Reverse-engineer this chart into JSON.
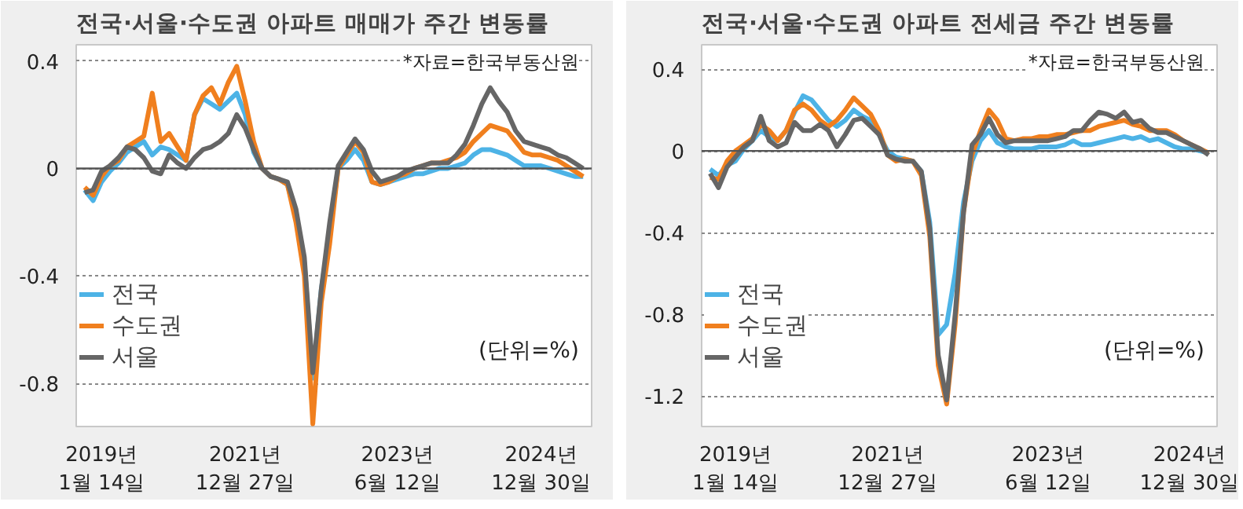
{
  "chart_data": [
    {
      "type": "line",
      "title": "전국·서울·수도권 아파트 매매가 주간 변동률",
      "annotations": [
        "*자료=한국부동산원",
        "(단위=%)"
      ],
      "categories": [
        null,
        null,
        "2019년\n1월 14일",
        null,
        null,
        null,
        null,
        null,
        null,
        null,
        null,
        null,
        null,
        null,
        null,
        null,
        null,
        null,
        null,
        "2021년\n12월 27일",
        null,
        null,
        null,
        null,
        null,
        null,
        null,
        null,
        null,
        null,
        null,
        null,
        null,
        null,
        null,
        null,
        null,
        "2023년\n6월 12일",
        null,
        null,
        null,
        null,
        null,
        null,
        null,
        null,
        null,
        null,
        null,
        null,
        null,
        null,
        null,
        null,
        "2024년\n12월 30일",
        null,
        null,
        null,
        null,
        null
      ],
      "series": [
        {
          "name": "전국",
          "color": "#4db3e6",
          "values": [
            -0.08,
            -0.12,
            -0.05,
            -0.01,
            0.02,
            0.06,
            0.08,
            0.1,
            0.05,
            0.08,
            0.07,
            0.05,
            0.03,
            0.2,
            0.26,
            0.24,
            0.22,
            0.25,
            0.28,
            0.2,
            0.06,
            0.0,
            -0.03,
            -0.04,
            -0.06,
            -0.18,
            -0.35,
            -0.78,
            -0.45,
            -0.24,
            0.0,
            0.03,
            0.07,
            0.03,
            -0.05,
            -0.06,
            -0.05,
            -0.04,
            -0.03,
            -0.02,
            -0.02,
            -0.01,
            0.0,
            0.0,
            0.01,
            0.02,
            0.05,
            0.07,
            0.07,
            0.06,
            0.05,
            0.03,
            0.01,
            0.01,
            0.01,
            0.0,
            -0.01,
            -0.02,
            -0.03,
            -0.03
          ]
        },
        {
          "name": "수도권",
          "color": "#f07f1e",
          "values": [
            -0.07,
            -0.1,
            -0.03,
            0.01,
            0.03,
            0.08,
            0.1,
            0.12,
            0.28,
            0.1,
            0.13,
            0.08,
            0.03,
            0.2,
            0.27,
            0.3,
            0.24,
            0.32,
            0.38,
            0.25,
            0.1,
            0.0,
            -0.03,
            -0.04,
            -0.06,
            -0.2,
            -0.4,
            -0.95,
            -0.5,
            -0.28,
            0.0,
            0.05,
            0.1,
            0.06,
            -0.05,
            -0.06,
            -0.05,
            -0.03,
            -0.02,
            0.0,
            0.01,
            0.02,
            0.02,
            0.03,
            0.04,
            0.06,
            0.1,
            0.13,
            0.16,
            0.15,
            0.14,
            0.1,
            0.06,
            0.05,
            0.05,
            0.04,
            0.03,
            0.01,
            -0.01,
            -0.03
          ]
        },
        {
          "name": "서울",
          "color": "#666666",
          "values": [
            -0.09,
            -0.08,
            -0.01,
            0.01,
            0.04,
            0.08,
            0.07,
            0.04,
            -0.01,
            -0.02,
            0.05,
            0.02,
            0.0,
            0.04,
            0.07,
            0.08,
            0.1,
            0.13,
            0.2,
            0.15,
            0.07,
            0.0,
            -0.03,
            -0.04,
            -0.05,
            -0.15,
            -0.33,
            -0.76,
            -0.45,
            -0.2,
            0.01,
            0.06,
            0.11,
            0.07,
            -0.01,
            -0.05,
            -0.04,
            -0.03,
            -0.01,
            0.0,
            0.01,
            0.02,
            0.02,
            0.02,
            0.05,
            0.09,
            0.16,
            0.24,
            0.3,
            0.25,
            0.21,
            0.14,
            0.1,
            0.09,
            0.08,
            0.07,
            0.05,
            0.04,
            0.02,
            0.0
          ]
        }
      ],
      "ylim": [
        -0.96,
        0.46
      ],
      "yticks": [
        -0.8,
        -0.4,
        0,
        0.4
      ],
      "grid": "y",
      "legend": "bottom left",
      "marker": "none",
      "line_style": "solid",
      "ref_lines": [
        {
          "axis": "y",
          "value": 0
        }
      ]
    },
    {
      "type": "line",
      "title": "전국·서울·수도권 아파트 전세금 주간 변동률",
      "annotations": [
        "*자료=한국부동산원",
        "(단위=%)"
      ],
      "categories": [
        null,
        null,
        null,
        "2019년\n1월 14일",
        null,
        null,
        null,
        null,
        null,
        null,
        null,
        null,
        null,
        null,
        null,
        null,
        null,
        null,
        null,
        null,
        null,
        "2021년\n12월 27일",
        null,
        null,
        null,
        null,
        null,
        null,
        null,
        null,
        null,
        null,
        null,
        null,
        null,
        null,
        null,
        null,
        null,
        null,
        "2023년\n6월 12일",
        null,
        null,
        null,
        null,
        null,
        null,
        null,
        null,
        null,
        null,
        null,
        null,
        null,
        null,
        null,
        null,
        "2024년\n12월 30일",
        null,
        null
      ],
      "series": [
        {
          "name": "전국",
          "color": "#4db3e6",
          "values": [
            -0.09,
            -0.12,
            -0.07,
            -0.05,
            0.01,
            0.05,
            0.1,
            0.07,
            0.05,
            0.1,
            0.19,
            0.27,
            0.25,
            0.2,
            0.15,
            0.12,
            0.15,
            0.2,
            0.17,
            0.15,
            0.08,
            0.0,
            -0.03,
            -0.04,
            -0.05,
            -0.1,
            -0.35,
            -0.9,
            -0.85,
            -0.6,
            -0.25,
            -0.05,
            0.05,
            0.1,
            0.04,
            0.02,
            0.01,
            0.01,
            0.01,
            0.02,
            0.02,
            0.02,
            0.03,
            0.05,
            0.03,
            0.03,
            0.04,
            0.05,
            0.06,
            0.07,
            0.06,
            0.07,
            0.05,
            0.06,
            0.04,
            0.02,
            0.01,
            0.01,
            0.0,
            -0.01
          ]
        },
        {
          "name": "수도권",
          "color": "#f07f1e",
          "values": [
            -0.13,
            -0.14,
            -0.05,
            0.0,
            0.03,
            0.06,
            0.13,
            0.1,
            0.05,
            0.1,
            0.2,
            0.23,
            0.2,
            0.15,
            0.12,
            0.15,
            0.2,
            0.26,
            0.22,
            0.18,
            0.1,
            -0.02,
            -0.05,
            -0.04,
            -0.05,
            -0.12,
            -0.42,
            -1.05,
            -1.24,
            -0.85,
            -0.3,
            -0.02,
            0.1,
            0.2,
            0.15,
            0.06,
            0.05,
            0.06,
            0.06,
            0.07,
            0.07,
            0.08,
            0.08,
            0.09,
            0.1,
            0.1,
            0.12,
            0.13,
            0.14,
            0.15,
            0.13,
            0.12,
            0.1,
            0.1,
            0.1,
            0.08,
            0.05,
            0.03,
            0.01,
            -0.01
          ]
        },
        {
          "name": "서울",
          "color": "#666666",
          "values": [
            -0.11,
            -0.18,
            -0.08,
            -0.03,
            0.02,
            0.05,
            0.17,
            0.05,
            0.02,
            0.04,
            0.14,
            0.1,
            0.1,
            0.13,
            0.1,
            0.02,
            0.08,
            0.15,
            0.16,
            0.12,
            0.08,
            -0.02,
            -0.04,
            -0.05,
            -0.05,
            -0.1,
            -0.38,
            -1.0,
            -1.22,
            -0.8,
            -0.3,
            0.03,
            0.08,
            0.16,
            0.08,
            0.04,
            0.05,
            0.05,
            0.05,
            0.05,
            0.05,
            0.06,
            0.07,
            0.1,
            0.1,
            0.15,
            0.19,
            0.18,
            0.16,
            0.19,
            0.14,
            0.15,
            0.11,
            0.09,
            0.09,
            0.07,
            0.05,
            0.03,
            0.01,
            -0.02
          ]
        }
      ],
      "ylim": [
        -1.35,
        0.52
      ],
      "yticks": [
        -1.2,
        -0.8,
        -0.4,
        0,
        0.4
      ],
      "grid": "y",
      "legend": "bottom left",
      "marker": "none",
      "line_style": "solid",
      "ref_lines": [
        {
          "axis": "y",
          "value": 0
        }
      ]
    }
  ]
}
